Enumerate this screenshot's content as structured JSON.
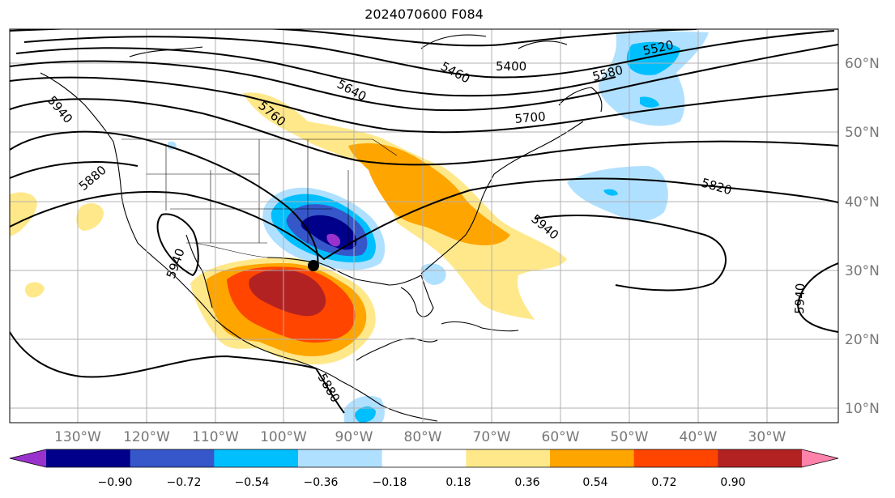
{
  "title": "2024070600 F084",
  "lon_labels": [
    "130°W",
    "120°W",
    "110°W",
    "100°W",
    "90°W",
    "80°W",
    "70°W",
    "60°W",
    "50°W",
    "40°W",
    "30°W"
  ],
  "lat_labels": [
    "60°N",
    "50°N",
    "40°N",
    "30°N",
    "20°N",
    "10°N"
  ],
  "contour_labels": [
    "5460",
    "5400",
    "5520",
    "5580",
    "5640",
    "5700",
    "5760",
    "5820",
    "5880",
    "5940",
    "5940",
    "5940",
    "5880",
    "5940"
  ],
  "colorbar": {
    "tick_labels": [
      "−0.90",
      "−0.72",
      "−0.54",
      "−0.36",
      "−0.18",
      "0.18",
      "0.36",
      "0.54",
      "0.72",
      "0.90"
    ],
    "colors": [
      "#9932cc",
      "#00008b",
      "#3657c9",
      "#00bfff",
      "#b0e0ff",
      "#ffffff",
      "#ffe88a",
      "#ffa500",
      "#ff4500",
      "#b22222",
      "#ff82ab"
    ]
  }
}
